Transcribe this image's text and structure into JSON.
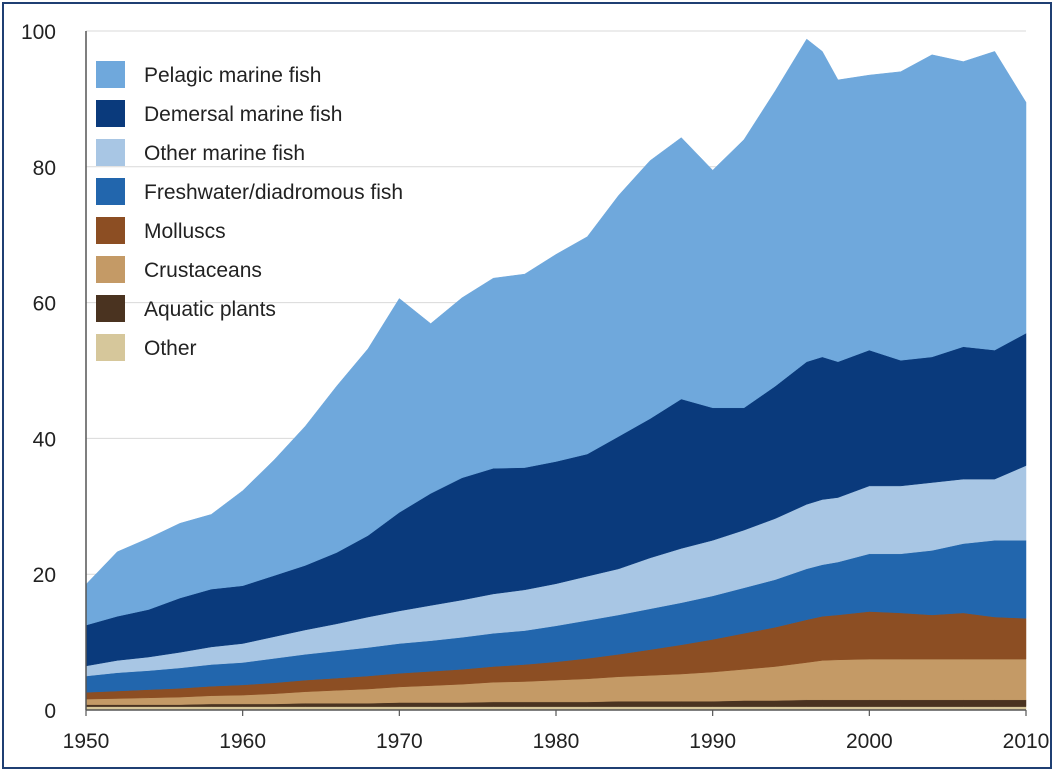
{
  "chart_data": {
    "type": "area",
    "stacked": true,
    "title": "",
    "xlabel": "",
    "ylabel": "",
    "xlim": [
      1950,
      2010
    ],
    "ylim": [
      0,
      100
    ],
    "x_ticks": [
      1950,
      1960,
      1970,
      1980,
      1990,
      2000,
      2010
    ],
    "y_ticks": [
      0,
      20,
      40,
      60,
      80,
      100
    ],
    "grid": "horizontal",
    "legend_position": "top-left",
    "x": [
      1950,
      1952,
      1954,
      1956,
      1958,
      1960,
      1962,
      1964,
      1966,
      1968,
      1970,
      1972,
      1974,
      1976,
      1978,
      1980,
      1982,
      1984,
      1986,
      1988,
      1990,
      1992,
      1994,
      1996,
      1997,
      1998,
      2000,
      2002,
      2004,
      2006,
      2008,
      2010
    ],
    "series": [
      {
        "name": "Other",
        "color": "#d6c79b",
        "values": [
          0.5,
          0.5,
          0.5,
          0.5,
          0.5,
          0.5,
          0.5,
          0.5,
          0.5,
          0.5,
          0.5,
          0.5,
          0.5,
          0.5,
          0.5,
          0.5,
          0.5,
          0.5,
          0.5,
          0.5,
          0.5,
          0.5,
          0.5,
          0.5,
          0.5,
          0.5,
          0.5,
          0.5,
          0.5,
          0.5,
          0.5,
          0.5
        ]
      },
      {
        "name": "Aquatic plants",
        "color": "#4a3320",
        "values": [
          0.3,
          0.3,
          0.3,
          0.3,
          0.4,
          0.4,
          0.4,
          0.5,
          0.5,
          0.5,
          0.6,
          0.6,
          0.6,
          0.7,
          0.7,
          0.7,
          0.7,
          0.8,
          0.8,
          0.8,
          0.8,
          0.9,
          0.9,
          1.0,
          1.0,
          1.0,
          1.0,
          1.0,
          1.0,
          1.0,
          1.0,
          1.0
        ]
      },
      {
        "name": "Crustaceans",
        "color": "#c49a66",
        "values": [
          0.8,
          0.9,
          1.0,
          1.1,
          1.2,
          1.3,
          1.5,
          1.7,
          1.9,
          2.1,
          2.3,
          2.5,
          2.7,
          2.9,
          3.0,
          3.2,
          3.4,
          3.6,
          3.8,
          4.0,
          4.3,
          4.6,
          5.0,
          5.5,
          5.8,
          5.9,
          6.0,
          6.0,
          6.0,
          6.0,
          6.0,
          6.0
        ]
      },
      {
        "name": "Molluscs",
        "color": "#8c4e23",
        "values": [
          1.0,
          1.1,
          1.2,
          1.3,
          1.4,
          1.5,
          1.6,
          1.7,
          1.8,
          1.9,
          2.0,
          2.1,
          2.2,
          2.3,
          2.5,
          2.7,
          3.0,
          3.3,
          3.8,
          4.3,
          4.8,
          5.3,
          5.8,
          6.3,
          6.5,
          6.6,
          7.0,
          6.8,
          6.5,
          6.8,
          6.2,
          6.0
        ]
      },
      {
        "name": "Freshwater/diadromous fish",
        "color": "#2266ad",
        "values": [
          2.4,
          2.7,
          2.8,
          3.0,
          3.2,
          3.3,
          3.6,
          3.8,
          4.0,
          4.2,
          4.4,
          4.5,
          4.7,
          4.9,
          5.0,
          5.3,
          5.6,
          5.8,
          6.0,
          6.2,
          6.4,
          6.7,
          7.0,
          7.5,
          7.6,
          7.8,
          8.5,
          8.7,
          9.5,
          10.2,
          11.3,
          11.5
        ]
      },
      {
        "name": "Other marine fish",
        "color": "#a8c6e4",
        "values": [
          1.5,
          1.8,
          2.0,
          2.3,
          2.6,
          2.8,
          3.2,
          3.6,
          4.0,
          4.5,
          4.8,
          5.2,
          5.5,
          5.8,
          6.0,
          6.2,
          6.5,
          6.8,
          7.5,
          8.0,
          8.2,
          8.5,
          9.0,
          9.5,
          9.6,
          9.5,
          10.0,
          10.0,
          10.0,
          9.5,
          9.0,
          11.0
        ]
      },
      {
        "name": "Demersal marine fish",
        "color": "#0a3a7c",
        "values": [
          6.0,
          6.5,
          7.0,
          8.0,
          8.5,
          8.5,
          9.0,
          9.5,
          10.5,
          12.0,
          14.5,
          16.5,
          18.0,
          18.5,
          18.0,
          18.0,
          18.0,
          19.5,
          20.5,
          22.0,
          19.5,
          18.0,
          19.5,
          21.0,
          21.0,
          20.0,
          20.0,
          18.5,
          18.5,
          19.5,
          19.0,
          19.5
        ]
      },
      {
        "name": "Pelagic marine fish",
        "color": "#6fa8dc",
        "values": [
          6.0,
          9.5,
          10.5,
          11.0,
          11.0,
          14.0,
          17.0,
          20.5,
          24.5,
          27.5,
          31.5,
          25.0,
          26.5,
          28.0,
          28.5,
          30.5,
          32.0,
          35.5,
          38.0,
          38.5,
          35.0,
          39.5,
          43.5,
          47.5,
          45.0,
          41.5,
          40.5,
          42.5,
          44.5,
          42.0,
          44.0,
          34.0
        ]
      }
    ]
  }
}
